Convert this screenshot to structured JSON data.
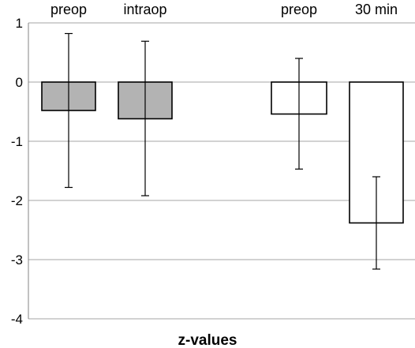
{
  "chart_data": {
    "type": "bar",
    "title": "",
    "xlabel": "z-values",
    "ylabel": "",
    "ylim": [
      -4,
      1
    ],
    "yticks": [
      1,
      0,
      -1,
      -2,
      -3,
      -4
    ],
    "grid": true,
    "legend": "none",
    "categories": [
      "preop",
      "intraop",
      "preop",
      "30 min"
    ],
    "values": [
      -0.48,
      -0.62,
      -0.54,
      -2.38
    ],
    "error_high": [
      0.82,
      0.69,
      0.4,
      -1.6
    ],
    "error_low": [
      -1.78,
      -1.92,
      -1.47,
      -3.16
    ],
    "bar_fills": [
      "#b3b3b3",
      "#b3b3b3",
      "#ffffff",
      "#ffffff"
    ]
  },
  "colors": {
    "gridline": "#a6a6a6",
    "axis": "#868686",
    "bar_stroke": "#000000",
    "error_bar": "#000000"
  }
}
